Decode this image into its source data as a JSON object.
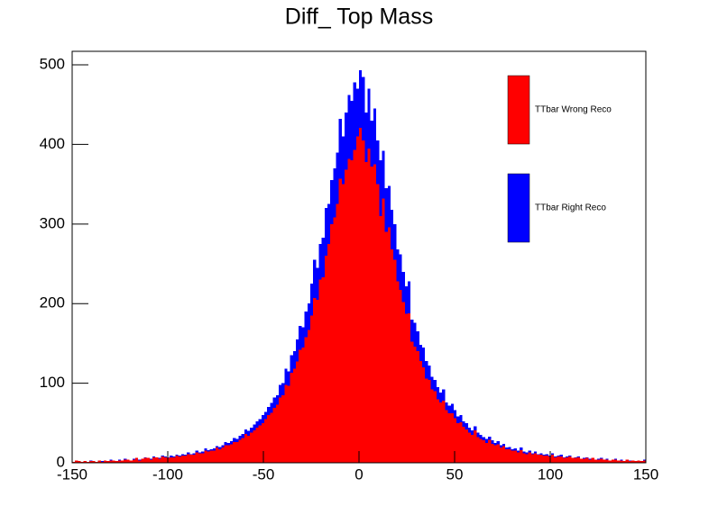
{
  "chart_data": {
    "type": "histogram",
    "title": "Diff_ Top Mass",
    "bins": [
      -150,
      -148.5,
      -147,
      -145.5,
      -144,
      -142.5,
      -141,
      -139.5,
      -138,
      -136.5,
      -135,
      -133.5,
      -132,
      -130.5,
      -129,
      -127.5,
      -126,
      -124.5,
      -123,
      -121.5,
      -120,
      -118.5,
      -117,
      -115.5,
      -114,
      -112.5,
      -111,
      -109.5,
      -108,
      -106.5,
      -105,
      -103.5,
      -102,
      -100.5,
      -99,
      -97.5,
      -96,
      -94.5,
      -93,
      -91.5,
      -90,
      -88.5,
      -87,
      -85.5,
      -84,
      -82.5,
      -81,
      -79.5,
      -78,
      -76.5,
      -75,
      -73.5,
      -72,
      -70.5,
      -69,
      -67.5,
      -66,
      -64.5,
      -63,
      -61.5,
      -60,
      -58.5,
      -57,
      -55.5,
      -54,
      -52.5,
      -51,
      -49.5,
      -48,
      -46.5,
      -45,
      -43.5,
      -42,
      -40.5,
      -39,
      -37.5,
      -36,
      -34.5,
      -33,
      -31.5,
      -30,
      -28.5,
      -27,
      -25.5,
      -24,
      -22.5,
      -21,
      -19.5,
      -18,
      -16.5,
      -15,
      -13.5,
      -12,
      -10.5,
      -9,
      -7.5,
      -6,
      -4.5,
      -3,
      -1.5,
      0,
      1.5,
      3,
      4.5,
      6,
      7.5,
      9,
      10.5,
      12,
      13.5,
      15,
      16.5,
      18,
      19.5,
      21,
      22.5,
      24,
      25.5,
      27,
      28.5,
      30,
      31.5,
      33,
      34.5,
      36,
      37.5,
      39,
      40.5,
      42,
      43.5,
      45,
      46.5,
      48,
      49.5,
      51,
      52.5,
      54,
      55.5,
      57,
      58.5,
      60,
      61.5,
      63,
      64.5,
      66,
      67.5,
      69,
      70.5,
      72,
      73.5,
      75,
      76.5,
      78,
      79.5,
      81,
      82.5,
      84,
      85.5,
      87,
      88.5,
      90,
      91.5,
      93,
      94.5,
      96,
      97.5,
      99,
      100.5,
      102,
      103.5,
      105,
      106.5,
      108,
      109.5,
      111,
      112.5,
      114,
      115.5,
      117,
      118.5,
      120,
      121.5,
      123,
      124.5,
      126,
      127.5,
      129,
      130.5,
      132,
      133.5,
      135,
      136.5,
      138,
      139.5,
      141,
      142.5,
      144,
      145.5,
      147,
      148.5,
      150
    ],
    "series": [
      {
        "name": "TTbar Wrong Reco",
        "color": "#ff0000",
        "values": [
          1,
          3,
          2,
          1,
          2,
          1,
          2,
          2,
          1,
          3,
          1,
          3,
          2,
          3,
          3,
          2,
          3,
          3,
          4,
          4,
          3,
          4,
          6,
          3,
          5,
          6,
          6,
          4,
          7,
          7,
          5,
          8,
          7,
          6,
          7,
          7,
          9,
          8,
          9,
          9,
          11,
          10,
          10,
          13,
          12,
          12,
          15,
          14,
          15,
          15,
          19,
          17,
          19,
          22,
          22,
          23,
          26,
          26,
          29,
          31,
          36,
          34,
          38,
          41,
          44,
          47,
          50,
          55,
          60,
          63,
          69,
          73,
          82,
          85,
          98,
          97,
          113,
          118,
          127,
          142,
          145,
          158,
          167,
          185,
          207,
          205,
          230,
          233,
          260,
          275,
          300,
          308,
          325,
          357,
          350,
          368,
          382,
          380,
          393,
          410,
          421,
          405,
          378,
          395,
          372,
          375,
          350,
          310,
          332,
          290,
          296,
          268,
          255,
          228,
          217,
          202,
          187,
          188,
          152,
          146,
          140,
          128,
          120,
          106,
          104,
          92,
          90,
          80,
          76,
          78,
          66,
          62,
          62,
          56,
          50,
          51,
          45,
          42,
          38,
          35,
          41,
          32,
          30,
          28,
          25,
          29,
          24,
          22,
          23,
          19,
          21,
          17,
          17,
          15,
          15,
          13,
          16,
          12,
          11,
          13,
          11,
          12,
          10,
          10,
          9,
          9,
          8,
          10,
          7,
          8,
          8,
          6,
          7,
          8,
          6,
          6,
          7,
          5,
          5,
          6,
          4,
          6,
          4,
          4,
          5,
          4,
          4,
          3,
          4,
          4,
          3,
          3,
          2,
          4,
          2,
          3,
          2,
          3,
          2,
          3
        ]
      },
      {
        "name": "TTbar Right Reco",
        "color": "#0000ff",
        "values": [
          0,
          0,
          0,
          0,
          0,
          0,
          1,
          0,
          0,
          0,
          1,
          0,
          0,
          1,
          0,
          0,
          1,
          0,
          1,
          0,
          0,
          1,
          0,
          1,
          0,
          1,
          0,
          1,
          1,
          0,
          1,
          1,
          1,
          1,
          2,
          1,
          1,
          1,
          2,
          1,
          2,
          1,
          2,
          2,
          1,
          2,
          3,
          2,
          2,
          3,
          2,
          3,
          3,
          4,
          3,
          4,
          5,
          4,
          5,
          5,
          6,
          6,
          6,
          7,
          8,
          8,
          10,
          9,
          10,
          12,
          13,
          12,
          16,
          15,
          20,
          18,
          22,
          22,
          28,
          30,
          25,
          32,
          33,
          40,
          48,
          40,
          45,
          50,
          60,
          50,
          55,
          62,
          65,
          75,
          60,
          72,
          80,
          75,
          85,
          60,
          72,
          80,
          62,
          75,
          58,
          70,
          55,
          70,
          60,
          55,
          52,
          50,
          45,
          40,
          45,
          38,
          35,
          40,
          28,
          30,
          25,
          20,
          25,
          22,
          18,
          16,
          14,
          15,
          12,
          14,
          10,
          10,
          12,
          10,
          8,
          9,
          7,
          8,
          6,
          6,
          5,
          6,
          5,
          4,
          5,
          4,
          4,
          3,
          4,
          3,
          3,
          2,
          3,
          2,
          3,
          2,
          3,
          2,
          2,
          2,
          1,
          2,
          1,
          2,
          1,
          2,
          1,
          2,
          1,
          1,
          2,
          1,
          1,
          1,
          0,
          1,
          1,
          0,
          1,
          1,
          1,
          0,
          0,
          1,
          1,
          0,
          1,
          0,
          0,
          1,
          0,
          1,
          0,
          0,
          1,
          0,
          0,
          0,
          0,
          1
        ]
      }
    ],
    "stacked": true,
    "xlim": [
      -150,
      150
    ],
    "xticks": [
      -150,
      -100,
      -50,
      0,
      50,
      100,
      150
    ],
    "ylim": [
      0,
      517
    ],
    "yticks": [
      0,
      100,
      200,
      300,
      400,
      500
    ],
    "legend": "top-right"
  }
}
